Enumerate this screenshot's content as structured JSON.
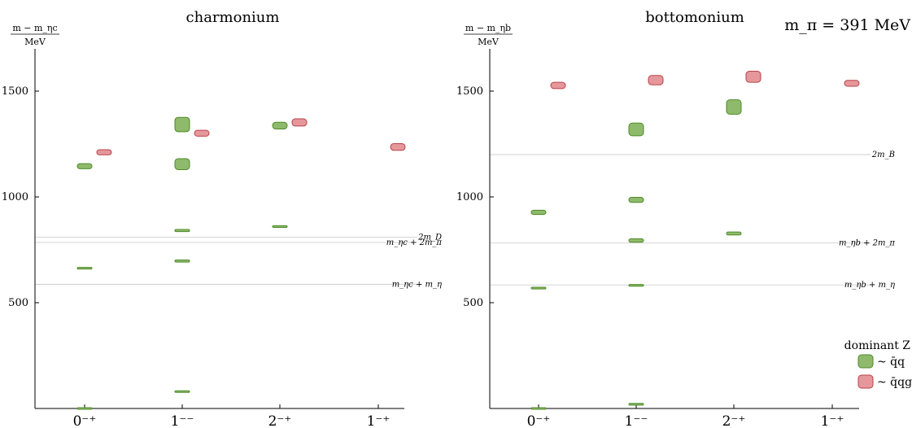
{
  "figure_label": "m_π = 391 MeV",
  "legend": {
    "title": "dominant Z",
    "entries": [
      {
        "label": "~ q̄q",
        "color": "#8fba6b",
        "stroke": "#4f8a2a"
      },
      {
        "label": "~ q̄qg",
        "color": "#e6979b",
        "stroke": "#b8434a"
      }
    ]
  },
  "chart_data": [
    {
      "type": "scatter",
      "title": "charmonium",
      "ylabel_numerator": "m − m_ηc",
      "ylabel_denominator": "MeV",
      "categories": [
        "0⁻⁺",
        "1⁻⁻",
        "2⁻⁺",
        "1⁻⁺"
      ],
      "ylim": [
        0,
        1700
      ],
      "yticks": [
        500,
        1000,
        1500
      ],
      "thresholds": [
        {
          "label": "2m_D",
          "value": 810
        },
        {
          "label": "m_ηc + 2m_π",
          "value": 785
        },
        {
          "label": "m_ηc + m_η",
          "value": 587
        }
      ],
      "series": [
        {
          "name": "~ q̄q",
          "points": [
            {
              "category": "0⁻⁺",
              "y": 0,
              "err": 3
            },
            {
              "category": "0⁻⁺",
              "y": 663,
              "err": 4
            },
            {
              "category": "0⁻⁺",
              "y": 1145,
              "err": 12
            },
            {
              "category": "1⁻⁻",
              "y": 80,
              "err": 3
            },
            {
              "category": "1⁻⁻",
              "y": 697,
              "err": 5
            },
            {
              "category": "1⁻⁻",
              "y": 841,
              "err": 5
            },
            {
              "category": "1⁻⁻",
              "y": 1155,
              "err": 26
            },
            {
              "category": "1⁻⁻",
              "y": 1342,
              "err": 34
            },
            {
              "category": "2⁻⁺",
              "y": 860,
              "err": 4
            },
            {
              "category": "2⁻⁺",
              "y": 1337,
              "err": 16
            }
          ]
        },
        {
          "name": "~ q̄qg",
          "points": [
            {
              "category": "0⁻⁺",
              "y": 1211,
              "err": 12
            },
            {
              "category": "1⁻⁻",
              "y": 1301,
              "err": 14
            },
            {
              "category": "2⁻⁺",
              "y": 1352,
              "err": 17
            },
            {
              "category": "1⁻⁺",
              "y": 1236,
              "err": 16
            }
          ]
        }
      ]
    },
    {
      "type": "scatter",
      "title": "bottomonium",
      "ylabel_numerator": "m − m_ηb",
      "ylabel_denominator": "MeV",
      "categories": [
        "0⁻⁺",
        "1⁻⁻",
        "2⁻⁺",
        "1⁻⁺"
      ],
      "ylim": [
        0,
        1700
      ],
      "yticks": [
        500,
        1000,
        1500
      ],
      "thresholds": [
        {
          "label": "2m_B",
          "value": 1200
        },
        {
          "label": "m_ηb + 2m_π",
          "value": 782
        },
        {
          "label": "m_ηb + m_η",
          "value": 584
        }
      ],
      "series": [
        {
          "name": "~ q̄q",
          "points": [
            {
              "category": "0⁻⁺",
              "y": 0,
              "err": 3
            },
            {
              "category": "0⁻⁺",
              "y": 569,
              "err": 4
            },
            {
              "category": "0⁻⁺",
              "y": 927,
              "err": 10
            },
            {
              "category": "1⁻⁻",
              "y": 20,
              "err": 4
            },
            {
              "category": "1⁻⁻",
              "y": 582,
              "err": 4
            },
            {
              "category": "1⁻⁻",
              "y": 794,
              "err": 8
            },
            {
              "category": "1⁻⁻",
              "y": 986,
              "err": 12
            },
            {
              "category": "1⁻⁻",
              "y": 1319,
              "err": 30
            },
            {
              "category": "2⁻⁺",
              "y": 827,
              "err": 7
            },
            {
              "category": "2⁻⁺",
              "y": 1425,
              "err": 34
            }
          ]
        },
        {
          "name": "~ q̄qg",
          "points": [
            {
              "category": "0⁻⁺",
              "y": 1527,
              "err": 15
            },
            {
              "category": "1⁻⁻",
              "y": 1552,
              "err": 22
            },
            {
              "category": "2⁻⁺",
              "y": 1568,
              "err": 26
            },
            {
              "category": "1⁻⁺",
              "y": 1537,
              "err": 14
            }
          ]
        }
      ]
    }
  ]
}
